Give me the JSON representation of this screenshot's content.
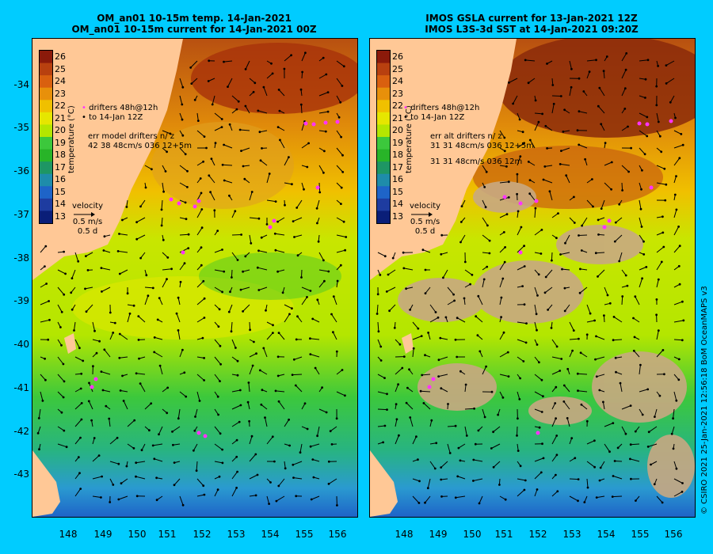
{
  "left_title": [
    "OM_an01 10-15m temp. 14-Jan-2021",
    "OM_an01 10-15m current for 14-Jan-2021 00Z"
  ],
  "right_title": [
    "IMOS GSLA current for 13-Jan-2021 12Z",
    "IMOS L3S-3d SST at 14-Jan-2021 09:20Z"
  ],
  "lat_labels": [
    "-34",
    "-35",
    "-36",
    "-37",
    "-38",
    "-39",
    "-40",
    "-41",
    "-42",
    "-43"
  ],
  "lon_labels": [
    "148",
    "149",
    "150",
    "151",
    "152",
    "153",
    "154",
    "155",
    "156"
  ],
  "colorbar": {
    "ticks": [
      "26",
      "25",
      "24",
      "23",
      "22",
      "21",
      "20",
      "19",
      "18",
      "17",
      "16",
      "15",
      "14",
      "13"
    ],
    "title": "temperature (°C)",
    "colors": [
      "#8b1a0a",
      "#b8400f",
      "#d9600f",
      "#e8900a",
      "#f0c000",
      "#e6e600",
      "#b4e600",
      "#3cc83c",
      "#28b428",
      "#1e9664",
      "#1e8caa",
      "#1e64c8",
      "#1e3ca0",
      "#0a1e78"
    ]
  },
  "left_legend": {
    "drifters": "drifters 48h@12h",
    "to": "to 14-Jan 12Z",
    "err": "err model drifters n/ z",
    "err_values": "42 38 48cm/s 036 12+5m",
    "velocity": "velocity",
    "speed": "0.5 m/s",
    "days": "0.5 d"
  },
  "right_legend": {
    "drifters": "drifters 48h@12h",
    "to": "to 14-Jan 12Z",
    "err": "err alt drifters n/ z",
    "err_values_1": "31 31 48cm/s 036 12+5m",
    "err_values_2": "31 31 48cm/s 036 12m",
    "velocity": "velocity",
    "speed": "0.5 m/s",
    "days": "0.5 d"
  },
  "credit": "© CSIRO 2021   25-Jan-2021 12:56:18 BoM OceanMAPS v3",
  "colors": {
    "background": "#00ccff",
    "land": "#ffc896",
    "cloud": "#c8a882",
    "drifter": "#ff33ff"
  }
}
